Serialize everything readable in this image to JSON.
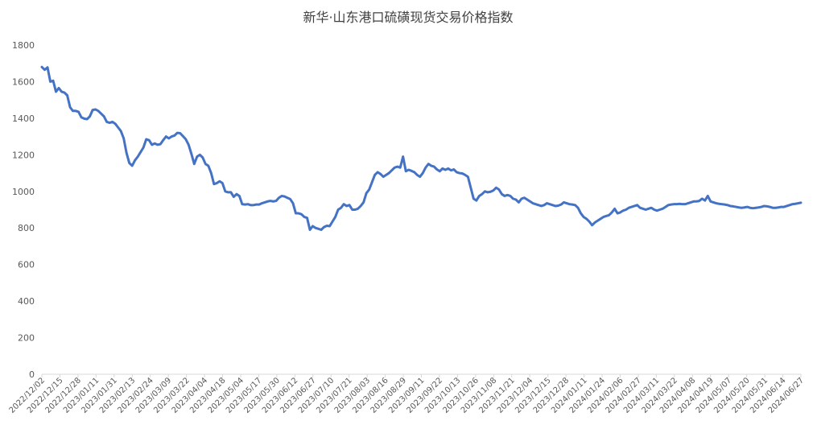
{
  "chart_data": {
    "type": "line",
    "title": "新华·山东港口硫磺现货交易价格指数",
    "xlabel": "",
    "ylabel": "",
    "ylim": [
      0,
      1800
    ],
    "yticks": [
      0,
      200,
      400,
      600,
      800,
      1000,
      1200,
      1400,
      1600,
      1800
    ],
    "grid": false,
    "legend": "none",
    "line_color": "#4472C4",
    "x_tick_labels": [
      "2022/12/02",
      "2022/12/15",
      "2022/12/28",
      "2023/01/11",
      "2023/01/31",
      "2023/02/13",
      "2023/02/24",
      "2023/03/09",
      "2023/03/22",
      "2023/04/04",
      "2023/04/18",
      "2023/05/04",
      "2023/05/17",
      "2023/05/30",
      "2023/06/12",
      "2023/06/27",
      "2023/07/10",
      "2023/07/21",
      "2023/08/03",
      "2023/08/16",
      "2023/08/29",
      "2023/09/11",
      "2023/09/22",
      "2023/10/13",
      "2023/10/26",
      "2023/11/08",
      "2023/11/21",
      "2023/12/04",
      "2023/12/15",
      "2023/12/28",
      "2024/01/11",
      "2024/01/24",
      "2024/02/06",
      "2024/02/27",
      "2024/03/11",
      "2024/03/22",
      "2024/04/08",
      "2024/04/19",
      "2024/05/07",
      "2024/05/20",
      "2024/05/31",
      "2024/06/14",
      "2024/06/27"
    ],
    "series": [
      {
        "values": [
          1680,
          1665,
          1678,
          1600,
          1605,
          1545,
          1565,
          1545,
          1540,
          1525,
          1460,
          1440,
          1440,
          1435,
          1405,
          1398,
          1395,
          1410,
          1445,
          1448,
          1440,
          1425,
          1410,
          1380,
          1375,
          1380,
          1370,
          1350,
          1330,
          1290,
          1210,
          1155,
          1140,
          1170,
          1190,
          1215,
          1240,
          1285,
          1280,
          1255,
          1262,
          1255,
          1258,
          1280,
          1300,
          1290,
          1300,
          1305,
          1320,
          1318,
          1302,
          1285,
          1255,
          1205,
          1150,
          1190,
          1200,
          1185,
          1150,
          1140,
          1100,
          1040,
          1045,
          1055,
          1045,
          1000,
          995,
          995,
          970,
          985,
          975,
          930,
          928,
          930,
          925,
          925,
          928,
          928,
          935,
          940,
          945,
          948,
          945,
          948,
          965,
          975,
          972,
          965,
          958,
          935,
          880,
          880,
          875,
          860,
          855,
          790,
          810,
          800,
          795,
          790,
          805,
          812,
          810,
          835,
          860,
          900,
          910,
          930,
          920,
          925,
          900,
          900,
          905,
          920,
          940,
          990,
          1010,
          1050,
          1090,
          1105,
          1095,
          1080,
          1090,
          1100,
          1115,
          1130,
          1135,
          1130,
          1190,
          1110,
          1118,
          1112,
          1105,
          1090,
          1080,
          1100,
          1130,
          1150,
          1140,
          1135,
          1120,
          1110,
          1125,
          1118,
          1125,
          1115,
          1120,
          1105,
          1100,
          1098,
          1090,
          1080,
          1020,
          960,
          950,
          975,
          985,
          1000,
          995,
          998,
          1005,
          1020,
          1010,
          985,
          975,
          980,
          975,
          960,
          955,
          940,
          960,
          965,
          955,
          945,
          935,
          930,
          925,
          920,
          925,
          935,
          930,
          925,
          920,
          922,
          928,
          940,
          935,
          930,
          928,
          925,
          910,
          880,
          860,
          850,
          835,
          815,
          830,
          840,
          850,
          860,
          865,
          870,
          885,
          905,
          880,
          885,
          895,
          900,
          910,
          915,
          920,
          925,
          910,
          905,
          900,
          905,
          910,
          900,
          895,
          900,
          905,
          915,
          925,
          928,
          930,
          930,
          932,
          930,
          930,
          935,
          940,
          945,
          945,
          948,
          960,
          950,
          975,
          945,
          940,
          935,
          932,
          930,
          928,
          925,
          920,
          918,
          915,
          912,
          910,
          912,
          915,
          910,
          908,
          910,
          912,
          915,
          920,
          918,
          915,
          910,
          910,
          912,
          915,
          915,
          920,
          925,
          930,
          932,
          935,
          938
        ]
      }
    ]
  }
}
